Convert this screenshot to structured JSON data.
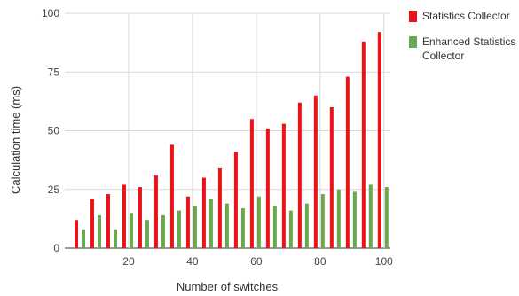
{
  "chart_data": {
    "type": "bar",
    "title": "",
    "xlabel": "Number of switches",
    "ylabel": "Calculation time (ms)",
    "ylim": [
      0,
      100
    ],
    "yticks": [
      "0",
      "25",
      "50",
      "75",
      "100"
    ],
    "xticks": [
      "20",
      "40",
      "60",
      "80",
      "100"
    ],
    "x": [
      5,
      10,
      15,
      20,
      25,
      30,
      35,
      40,
      45,
      50,
      55,
      60,
      65,
      70,
      75,
      80,
      85,
      90,
      95,
      100
    ],
    "grid": true,
    "legend_position": "right",
    "series": [
      {
        "name": "Statistics Collector",
        "color": "#e8141a",
        "values": [
          12,
          21,
          23,
          27,
          26,
          31,
          44,
          22,
          30,
          34,
          41,
          55,
          51,
          53,
          62,
          65,
          60,
          73,
          88,
          92
        ]
      },
      {
        "name": "Enhanced Statistics Collector",
        "name_lines": [
          "Enhanced Statistics",
          "Collector"
        ],
        "color": "#6aa84f",
        "values": [
          8,
          14,
          8,
          15,
          12,
          14,
          16,
          18,
          21,
          19,
          17,
          22,
          18,
          16,
          19,
          23,
          25,
          24,
          27,
          26
        ]
      }
    ]
  }
}
